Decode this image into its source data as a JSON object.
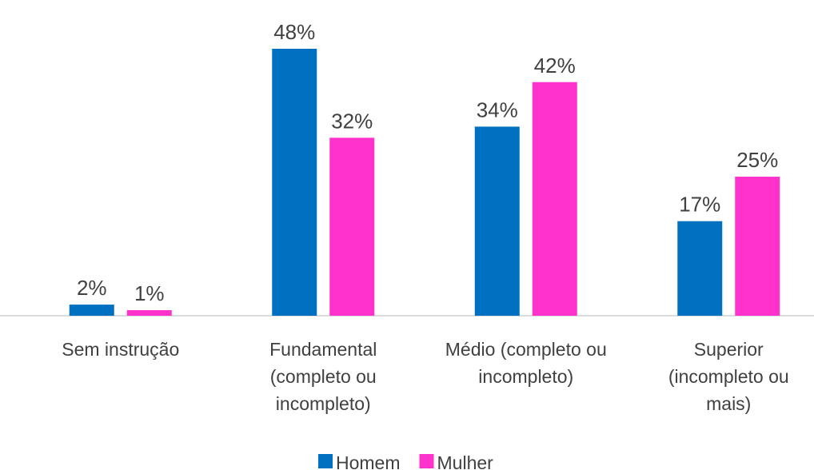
{
  "chart_data": {
    "type": "bar",
    "categories": [
      "Sem instrução",
      "Fundamental (completo ou incompleto)",
      "Médio (completo ou incompleto)",
      "Superior (incompleto ou mais)"
    ],
    "series": [
      {
        "name": "Homem",
        "color": "#0070c0",
        "values": [
          2,
          48,
          34,
          17
        ],
        "value_labels": [
          "2%",
          "48%",
          "34%",
          "17%"
        ]
      },
      {
        "name": "Mulher",
        "color": "#ff33cc",
        "values": [
          1,
          32,
          42,
          25
        ],
        "value_labels": [
          "1%",
          "32%",
          "42%",
          "25%"
        ]
      }
    ],
    "legend": "bottom"
  }
}
